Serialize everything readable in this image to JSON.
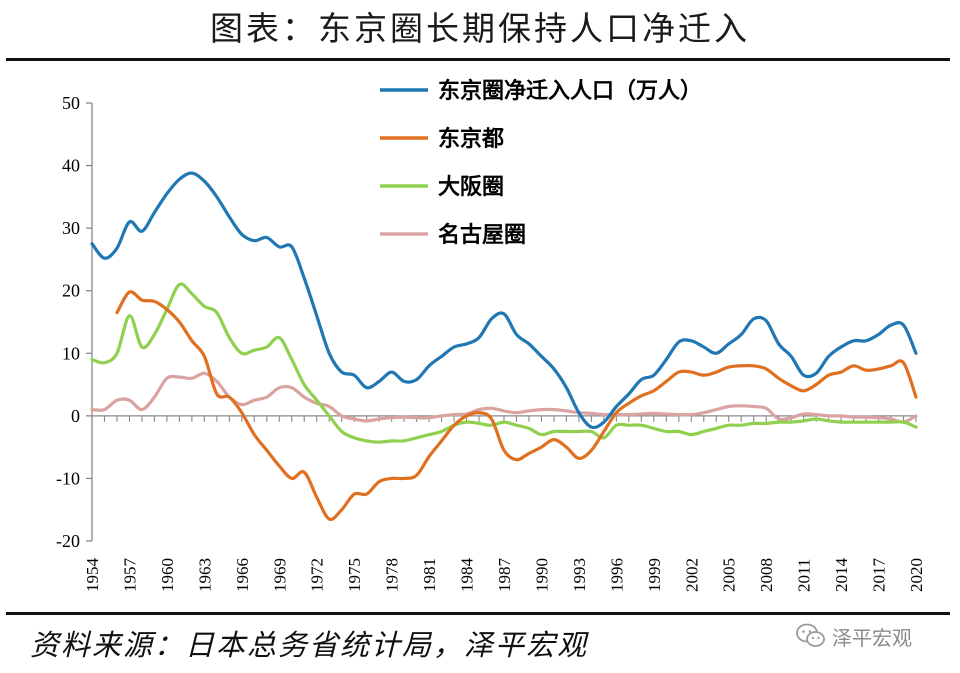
{
  "page": {
    "title": "图表：东京圈长期保持人口净迁入",
    "source": "资料来源：日本总务省统计局，泽平宏观",
    "watermark": "泽平宏观",
    "watermark_icon": "wechat-logo-icon"
  },
  "chart_data": {
    "type": "line",
    "title": "图表：东京圈长期保持人口净迁入",
    "xlabel": "",
    "ylabel": "",
    "ylim": [
      -20,
      50
    ],
    "yticks": [
      -20,
      -10,
      0,
      10,
      20,
      30,
      40,
      50
    ],
    "x_range": [
      1954,
      2020
    ],
    "xtick_labels": [
      "1954",
      "1957",
      "1960",
      "1963",
      "1966",
      "1969",
      "1972",
      "1975",
      "1978",
      "1981",
      "1984",
      "1987",
      "1990",
      "1993",
      "1996",
      "1999",
      "2002",
      "2005",
      "2008",
      "2011",
      "2014",
      "2017",
      "2020"
    ],
    "legend_position": "top-center",
    "grid": false,
    "series": [
      {
        "name": "东京圈净迁入人口（万人）",
        "color": "#1f77b4",
        "x": [
          1954,
          1955,
          1956,
          1957,
          1958,
          1959,
          1960,
          1961,
          1962,
          1963,
          1964,
          1965,
          1966,
          1967,
          1968,
          1969,
          1970,
          1971,
          1972,
          1973,
          1974,
          1975,
          1976,
          1977,
          1978,
          1979,
          1980,
          1981,
          1982,
          1983,
          1984,
          1985,
          1986,
          1987,
          1988,
          1989,
          1990,
          1991,
          1992,
          1993,
          1994,
          1995,
          1996,
          1997,
          1998,
          1999,
          2000,
          2001,
          2002,
          2003,
          2004,
          2005,
          2006,
          2007,
          2008,
          2009,
          2010,
          2011,
          2012,
          2013,
          2014,
          2015,
          2016,
          2017,
          2018,
          2019,
          2020
        ],
        "values": [
          27.5,
          25.2,
          26.8,
          31.0,
          29.5,
          32.5,
          35.5,
          37.8,
          38.8,
          37.5,
          35.0,
          31.8,
          29.0,
          28.0,
          28.5,
          27.0,
          27.0,
          22.0,
          16.0,
          10.0,
          7.0,
          6.5,
          4.5,
          5.5,
          7.0,
          5.5,
          5.8,
          8.0,
          9.5,
          11.0,
          11.5,
          12.5,
          15.5,
          16.3,
          13.0,
          11.5,
          9.5,
          7.5,
          4.5,
          0.5,
          -1.8,
          -1.0,
          1.5,
          3.5,
          5.8,
          6.5,
          9.0,
          11.8,
          12.0,
          11.0,
          10.0,
          11.5,
          13.0,
          15.5,
          15.2,
          11.5,
          9.5,
          6.5,
          6.8,
          9.5,
          11.0,
          12.0,
          12.0,
          13.0,
          14.5,
          14.5,
          10.0
        ]
      },
      {
        "name": "东京都",
        "color": "#e07020",
        "x": [
          1956,
          1957,
          1958,
          1959,
          1960,
          1961,
          1962,
          1963,
          1964,
          1965,
          1966,
          1967,
          1968,
          1969,
          1970,
          1971,
          1972,
          1973,
          1974,
          1975,
          1976,
          1977,
          1978,
          1979,
          1980,
          1981,
          1982,
          1983,
          1984,
          1985,
          1986,
          1987,
          1988,
          1989,
          1990,
          1991,
          1992,
          1993,
          1994,
          1995,
          1996,
          1997,
          1998,
          1999,
          2000,
          2001,
          2002,
          2003,
          2004,
          2005,
          2006,
          2007,
          2008,
          2009,
          2010,
          2011,
          2012,
          2013,
          2014,
          2015,
          2016,
          2017,
          2018,
          2019,
          2020
        ],
        "values": [
          16.5,
          19.8,
          18.5,
          18.3,
          17.0,
          15.0,
          12.0,
          9.5,
          3.5,
          3.0,
          0.5,
          -3.0,
          -5.5,
          -8.0,
          -10.0,
          -9.0,
          -13.0,
          -16.5,
          -15.0,
          -12.5,
          -12.5,
          -10.5,
          -10.0,
          -10.0,
          -9.5,
          -6.5,
          -4.0,
          -1.5,
          0.0,
          0.5,
          -0.5,
          -5.5,
          -7.0,
          -6.0,
          -5.0,
          -3.8,
          -5.0,
          -6.8,
          -5.5,
          -2.5,
          0.5,
          2.0,
          3.2,
          4.0,
          5.5,
          7.0,
          7.0,
          6.5,
          7.0,
          7.8,
          8.0,
          8.0,
          7.5,
          6.0,
          4.8,
          4.0,
          5.0,
          6.5,
          7.0,
          8.0,
          7.3,
          7.5,
          8.0,
          8.5,
          3.0
        ]
      },
      {
        "name": "大阪圈",
        "color": "#8fd14f",
        "x": [
          1954,
          1955,
          1956,
          1957,
          1958,
          1959,
          1960,
          1961,
          1962,
          1963,
          1964,
          1965,
          1966,
          1967,
          1968,
          1969,
          1970,
          1971,
          1972,
          1973,
          1974,
          1975,
          1976,
          1977,
          1978,
          1979,
          1980,
          1981,
          1982,
          1983,
          1984,
          1985,
          1986,
          1987,
          1988,
          1989,
          1990,
          1991,
          1992,
          1993,
          1994,
          1995,
          1996,
          1997,
          1998,
          1999,
          2000,
          2001,
          2002,
          2003,
          2004,
          2005,
          2006,
          2007,
          2008,
          2009,
          2010,
          2011,
          2012,
          2013,
          2014,
          2015,
          2016,
          2017,
          2018,
          2019,
          2020
        ],
        "values": [
          9.0,
          8.5,
          10.0,
          16.0,
          11.0,
          13.0,
          17.0,
          21.0,
          19.5,
          17.5,
          16.5,
          12.5,
          10.0,
          10.5,
          11.0,
          12.5,
          9.0,
          5.0,
          2.5,
          0.0,
          -2.5,
          -3.5,
          -4.0,
          -4.2,
          -4.0,
          -4.0,
          -3.5,
          -3.0,
          -2.5,
          -1.5,
          -1.0,
          -1.2,
          -1.5,
          -1.0,
          -1.5,
          -2.0,
          -3.0,
          -2.5,
          -2.5,
          -2.5,
          -2.5,
          -3.5,
          -1.5,
          -1.5,
          -1.5,
          -2.0,
          -2.5,
          -2.5,
          -3.0,
          -2.5,
          -2.0,
          -1.5,
          -1.5,
          -1.2,
          -1.2,
          -1.0,
          -1.0,
          -0.8,
          -0.5,
          -0.8,
          -1.0,
          -1.0,
          -1.0,
          -1.0,
          -1.0,
          -1.0,
          -1.8
        ]
      },
      {
        "name": "名古屋圈",
        "color": "#dba2a2",
        "x": [
          1954,
          1955,
          1956,
          1957,
          1958,
          1959,
          1960,
          1961,
          1962,
          1963,
          1964,
          1965,
          1966,
          1967,
          1968,
          1969,
          1970,
          1971,
          1972,
          1973,
          1974,
          1975,
          1976,
          1977,
          1978,
          1979,
          1980,
          1981,
          1982,
          1983,
          1984,
          1985,
          1986,
          1987,
          1988,
          1989,
          1990,
          1991,
          1992,
          1993,
          1994,
          1995,
          1996,
          1997,
          1998,
          1999,
          2000,
          2001,
          2002,
          2003,
          2004,
          2005,
          2006,
          2007,
          2008,
          2009,
          2010,
          2011,
          2012,
          2013,
          2014,
          2015,
          2016,
          2017,
          2018,
          2019,
          2020
        ],
        "values": [
          1.0,
          1.0,
          2.5,
          2.5,
          1.0,
          3.0,
          6.0,
          6.2,
          6.0,
          6.8,
          5.5,
          3.0,
          1.8,
          2.5,
          3.0,
          4.5,
          4.5,
          3.0,
          2.0,
          1.5,
          0.0,
          -0.5,
          -0.8,
          -0.5,
          -0.3,
          -0.2,
          -0.3,
          -0.3,
          0.0,
          0.2,
          0.3,
          1.0,
          1.2,
          0.8,
          0.5,
          0.8,
          1.0,
          1.0,
          0.8,
          0.5,
          0.4,
          0.2,
          0.2,
          0.2,
          0.3,
          0.4,
          0.3,
          0.2,
          0.2,
          0.5,
          1.0,
          1.5,
          1.6,
          1.5,
          1.2,
          -0.5,
          -0.3,
          0.3,
          0.2,
          0.0,
          0.0,
          -0.2,
          -0.2,
          -0.3,
          -0.5,
          -1.0,
          0.0
        ]
      }
    ]
  }
}
